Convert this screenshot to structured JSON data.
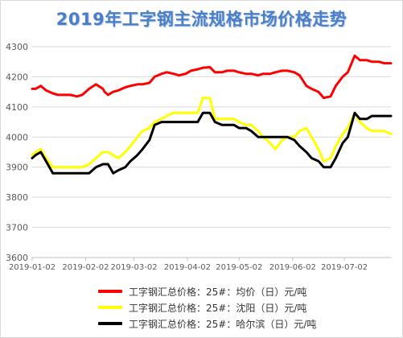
{
  "chart_data": {
    "type": "line",
    "title": "2019年工字钢主流规格市场价格走势",
    "xlabel": "",
    "ylabel": "",
    "ylim": [
      3600,
      4300
    ],
    "yticks": [
      3600,
      3700,
      3800,
      3900,
      4000,
      4100,
      4200,
      4300
    ],
    "xticks": [
      "2019-01-02",
      "2019-02-02",
      "2019-03-02",
      "2019-04-02",
      "2019-05-02",
      "2019-06-02",
      "2019-07-02"
    ],
    "grid": "horizontal",
    "legend_position": "bottom",
    "x": [
      "2019-01-02",
      "2019-01-04",
      "2019-01-07",
      "2019-01-10",
      "2019-01-14",
      "2019-01-17",
      "2019-01-21",
      "2019-01-24",
      "2019-01-28",
      "2019-01-31",
      "2019-02-04",
      "2019-02-08",
      "2019-02-12",
      "2019-02-13",
      "2019-02-15",
      "2019-02-18",
      "2019-02-21",
      "2019-02-25",
      "2019-02-28",
      "2019-03-04",
      "2019-03-07",
      "2019-03-11",
      "2019-03-14",
      "2019-03-18",
      "2019-03-21",
      "2019-03-25",
      "2019-03-28",
      "2019-04-01",
      "2019-04-04",
      "2019-04-08",
      "2019-04-11",
      "2019-04-15",
      "2019-04-18",
      "2019-04-22",
      "2019-04-25",
      "2019-04-29",
      "2019-05-02",
      "2019-05-06",
      "2019-05-09",
      "2019-05-13",
      "2019-05-16",
      "2019-05-20",
      "2019-05-23",
      "2019-05-27",
      "2019-05-30",
      "2019-06-03",
      "2019-06-06",
      "2019-06-10",
      "2019-06-13",
      "2019-06-17",
      "2019-06-20",
      "2019-06-24",
      "2019-06-27",
      "2019-07-01",
      "2019-07-04",
      "2019-07-08",
      "2019-07-11",
      "2019-07-15",
      "2019-07-18",
      "2019-07-22",
      "2019-07-25",
      "2019-07-29"
    ],
    "series": [
      {
        "name": "工字钢汇总价格：25#：均价（日）元/吨",
        "color": "#ff0000",
        "values": [
          4160,
          4160,
          4170,
          4155,
          4145,
          4140,
          4140,
          4140,
          4135,
          4140,
          4160,
          4175,
          4160,
          4150,
          4140,
          4150,
          4155,
          4165,
          4170,
          4175,
          4175,
          4180,
          4200,
          4210,
          4215,
          4210,
          4205,
          4210,
          4220,
          4225,
          4230,
          4232,
          4215,
          4215,
          4220,
          4220,
          4215,
          4210,
          4210,
          4205,
          4210,
          4210,
          4215,
          4220,
          4220,
          4215,
          4205,
          4170,
          4160,
          4150,
          4130,
          4135,
          4170,
          4200,
          4215,
          4270,
          4255,
          4255,
          4250,
          4250,
          4245,
          4245
        ]
      },
      {
        "name": "工字钢汇总价格：25#：沈阳（日）元/吨",
        "color": "#ffff00",
        "values": [
          3940,
          3950,
          3960,
          3930,
          3900,
          3900,
          3900,
          3900,
          3900,
          3900,
          3910,
          3930,
          3950,
          3950,
          3950,
          3940,
          3930,
          3950,
          3970,
          4000,
          4020,
          4030,
          4050,
          4060,
          4070,
          4080,
          4080,
          4080,
          4080,
          4080,
          4130,
          4130,
          4060,
          4060,
          4060,
          4060,
          4050,
          4040,
          4040,
          4020,
          4000,
          3980,
          3960,
          3990,
          4000,
          4000,
          4020,
          4030,
          4000,
          3960,
          3920,
          3930,
          3970,
          4010,
          4030,
          4080,
          4050,
          4030,
          4020,
          4020,
          4020,
          4010
        ]
      },
      {
        "name": "工字钢汇总价格：25#：哈尔滨（日）元/吨",
        "color": "#000000",
        "values": [
          3930,
          3940,
          3950,
          3920,
          3880,
          3880,
          3880,
          3880,
          3880,
          3880,
          3880,
          3900,
          3910,
          3910,
          3910,
          3880,
          3890,
          3900,
          3920,
          3940,
          3960,
          3990,
          4040,
          4050,
          4050,
          4050,
          4050,
          4050,
          4050,
          4050,
          4080,
          4080,
          4050,
          4040,
          4040,
          4040,
          4030,
          4030,
          4020,
          4000,
          4000,
          4000,
          4000,
          4000,
          4000,
          3990,
          3970,
          3950,
          3930,
          3920,
          3900,
          3900,
          3930,
          3980,
          4000,
          4080,
          4060,
          4060,
          4070,
          4070,
          4070,
          4070
        ]
      }
    ]
  }
}
